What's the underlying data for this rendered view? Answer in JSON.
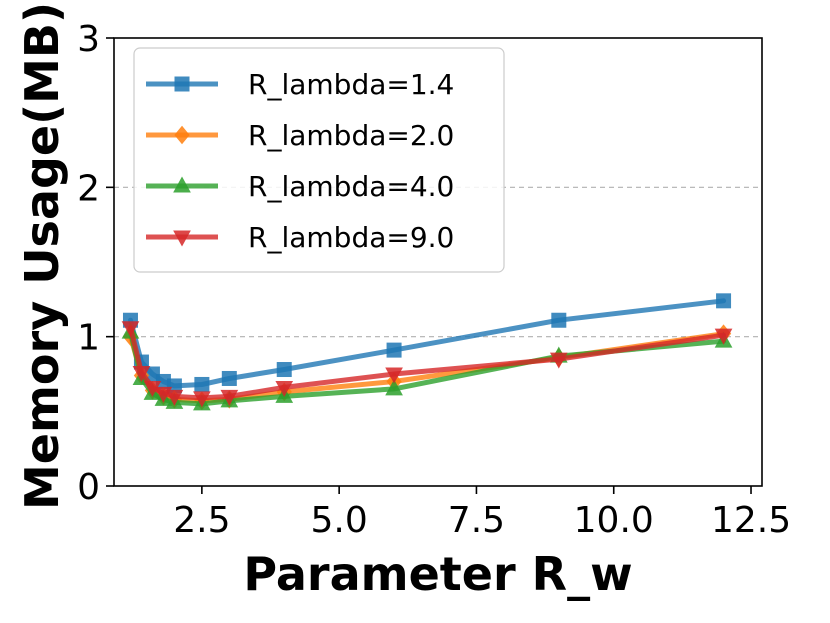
{
  "chart_data": {
    "type": "line",
    "title": "",
    "xlabel": "Parameter R_w",
    "ylabel": "Memory Usage(MB)",
    "xlim": [
      0.9,
      12.7
    ],
    "ylim": [
      0,
      3
    ],
    "x_ticks": [
      2.5,
      5.0,
      7.5,
      10.0,
      12.5
    ],
    "x_tick_labels": [
      "2.5",
      "5.0",
      "7.5",
      "10.0",
      "12.5"
    ],
    "y_ticks": [
      0,
      1,
      2,
      3
    ],
    "y_tick_labels": [
      "0",
      "1",
      "2",
      "3"
    ],
    "grid": "horizontal dashed at y=1 and y=2",
    "legend_position": "top-left",
    "x": [
      1.2,
      1.4,
      1.6,
      1.8,
      2.0,
      2.5,
      3.0,
      4.0,
      6.0,
      9.0,
      12.0
    ],
    "series": [
      {
        "name": "R_lambda=1.4",
        "color": "#1f77b4",
        "marker": "square",
        "values": [
          1.11,
          0.83,
          0.75,
          0.7,
          0.67,
          0.68,
          0.72,
          0.78,
          0.91,
          1.11,
          1.24
        ]
      },
      {
        "name": "R_lambda=2.0",
        "color": "#ff7f0e",
        "marker": "diamond",
        "values": [
          1.0,
          0.74,
          0.64,
          0.6,
          0.58,
          0.57,
          0.58,
          0.63,
          0.7,
          0.86,
          1.02
        ]
      },
      {
        "name": "R_lambda=4.0",
        "color": "#2ca02c",
        "marker": "triangle-up",
        "values": [
          1.03,
          0.72,
          0.62,
          0.58,
          0.56,
          0.55,
          0.57,
          0.6,
          0.65,
          0.87,
          0.97
        ]
      },
      {
        "name": "R_lambda=9.0",
        "color": "#d62728",
        "marker": "triangle-down",
        "values": [
          1.06,
          0.76,
          0.66,
          0.62,
          0.6,
          0.59,
          0.6,
          0.66,
          0.75,
          0.85,
          1.01
        ]
      }
    ]
  }
}
